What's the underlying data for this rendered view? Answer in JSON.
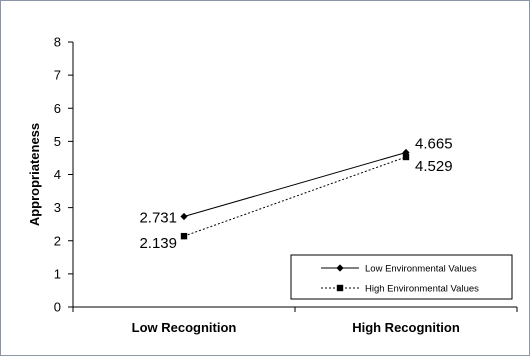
{
  "chart_data": {
    "type": "line",
    "title": "",
    "xlabel": "",
    "ylabel": "Appropriateness",
    "categories": [
      "Low Recognition",
      "High Recognition"
    ],
    "ylim": [
      0,
      8
    ],
    "yticks": [
      0,
      1,
      2,
      3,
      4,
      5,
      6,
      7,
      8
    ],
    "grid": false,
    "legend_position": "bottom-right",
    "series": [
      {
        "name": "Low Environmental Values",
        "values": [
          2.731,
          4.665
        ],
        "labels": [
          "2.731",
          "4.665"
        ],
        "line_style": "solid",
        "marker": "diamond",
        "color": "#000000"
      },
      {
        "name": "High Environmental Values",
        "values": [
          2.139,
          4.529
        ],
        "labels": [
          "2.139",
          "4.529"
        ],
        "line_style": "dotted",
        "marker": "square",
        "color": "#000000"
      }
    ]
  }
}
